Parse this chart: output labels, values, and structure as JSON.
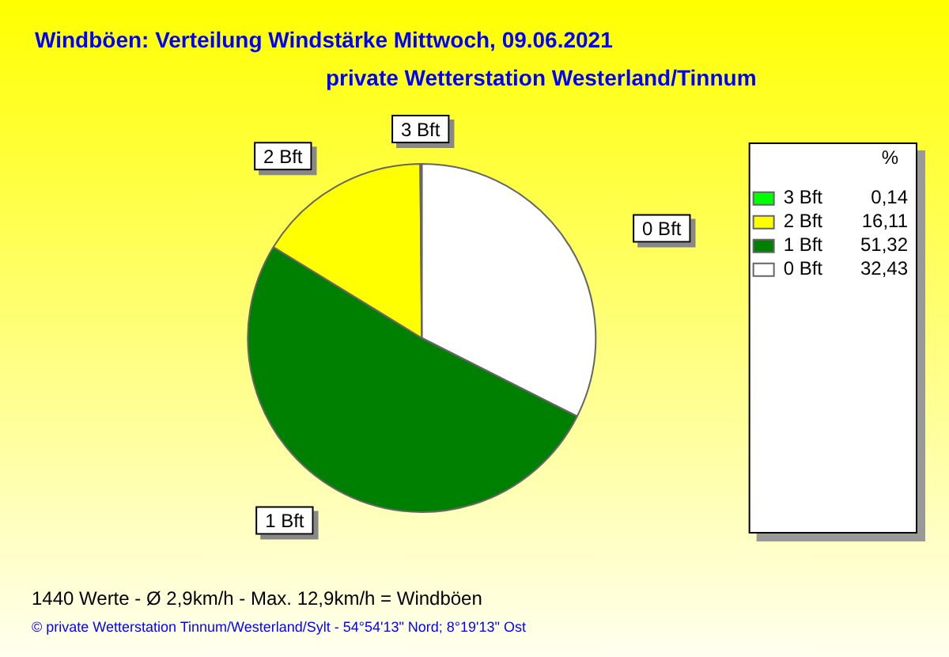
{
  "chart_data": {
    "type": "pie",
    "title": "Windböen: Verteilung Windstärke  Mittwoch, 09.06.2021",
    "subtitle": "private Wetterstation Westerland/Tinnum",
    "categories": [
      "0 Bft",
      "1 Bft",
      "2 Bft",
      "3 Bft"
    ],
    "values": [
      32.43,
      51.32,
      16.11,
      0.14
    ],
    "value_labels": [
      "32,43",
      "51,32",
      "16,11",
      "0,14"
    ],
    "colors": [
      "#ffffff",
      "#008000",
      "#ffff00",
      "#00ff00"
    ],
    "legend": "top right",
    "legend_title": "%",
    "annotations": [
      "1440 Werte   -   Ø 2,9km/h  -  Max. 12,9km/h = Windböen",
      "© private Wetterstation Tinnum/Westerland/Sylt   -   54°54'13\" Nord; 8°19'13\" Ost"
    ]
  }
}
